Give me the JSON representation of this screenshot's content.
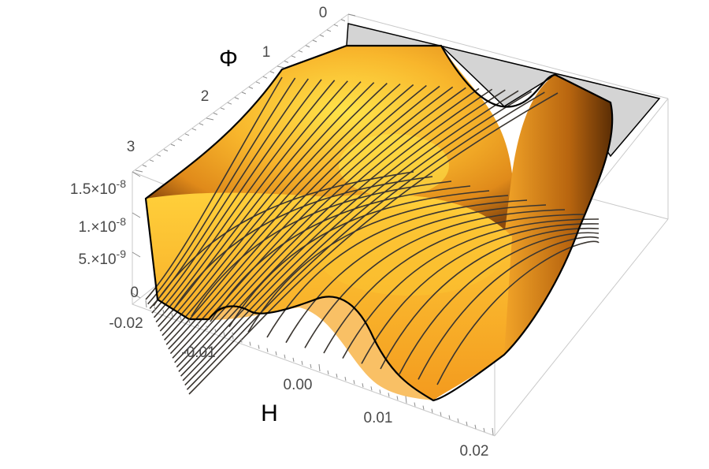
{
  "chart_data": {
    "type": "surface3d",
    "axes": {
      "x": {
        "title": "H",
        "range": [
          -0.02,
          0.02
        ],
        "ticks": [
          "-0.02",
          "-0.01",
          "0.00",
          "0.01",
          "0.02"
        ]
      },
      "y": {
        "title": "Φ",
        "range": [
          0,
          3.14
        ],
        "ticks": [
          "0",
          "1",
          "2",
          "3"
        ]
      },
      "z": {
        "title": "",
        "range": [
          0,
          1.6e-08
        ],
        "ticks": [
          "0",
          "5.×10",
          "1.×10",
          "1.5×10"
        ],
        "tick_exponents": [
          "",
          "-9",
          "-8",
          "-8"
        ]
      }
    },
    "surface": {
      "description_points": [
        {
          "H": -0.02,
          "phi": 3.14,
          "V": 1.3e-08
        },
        {
          "H": -0.02,
          "phi": 0,
          "V": 1.3e-08
        },
        {
          "H": 0.02,
          "phi": 3.14,
          "V": 1.3e-08
        },
        {
          "H": 0.02,
          "phi": 0,
          "V": 1.2e-08
        },
        {
          "H": 0.0,
          "phi": 0,
          "V": 9e-09
        },
        {
          "H": 0.0,
          "phi": 1.57,
          "V": 0.0
        },
        {
          "H": -0.0125,
          "phi": 3.14,
          "V": 0.0
        },
        {
          "H": 0.0125,
          "phi": 3.14,
          "V": 0.0
        }
      ]
    },
    "colors": {
      "surface_light": "#ffe44a",
      "surface_mid": "#f5a623",
      "surface_dark": "#7a3d06",
      "mesh": "#3a3530",
      "floor": "#d4d4d4"
    },
    "grid": false,
    "boxed": true
  }
}
